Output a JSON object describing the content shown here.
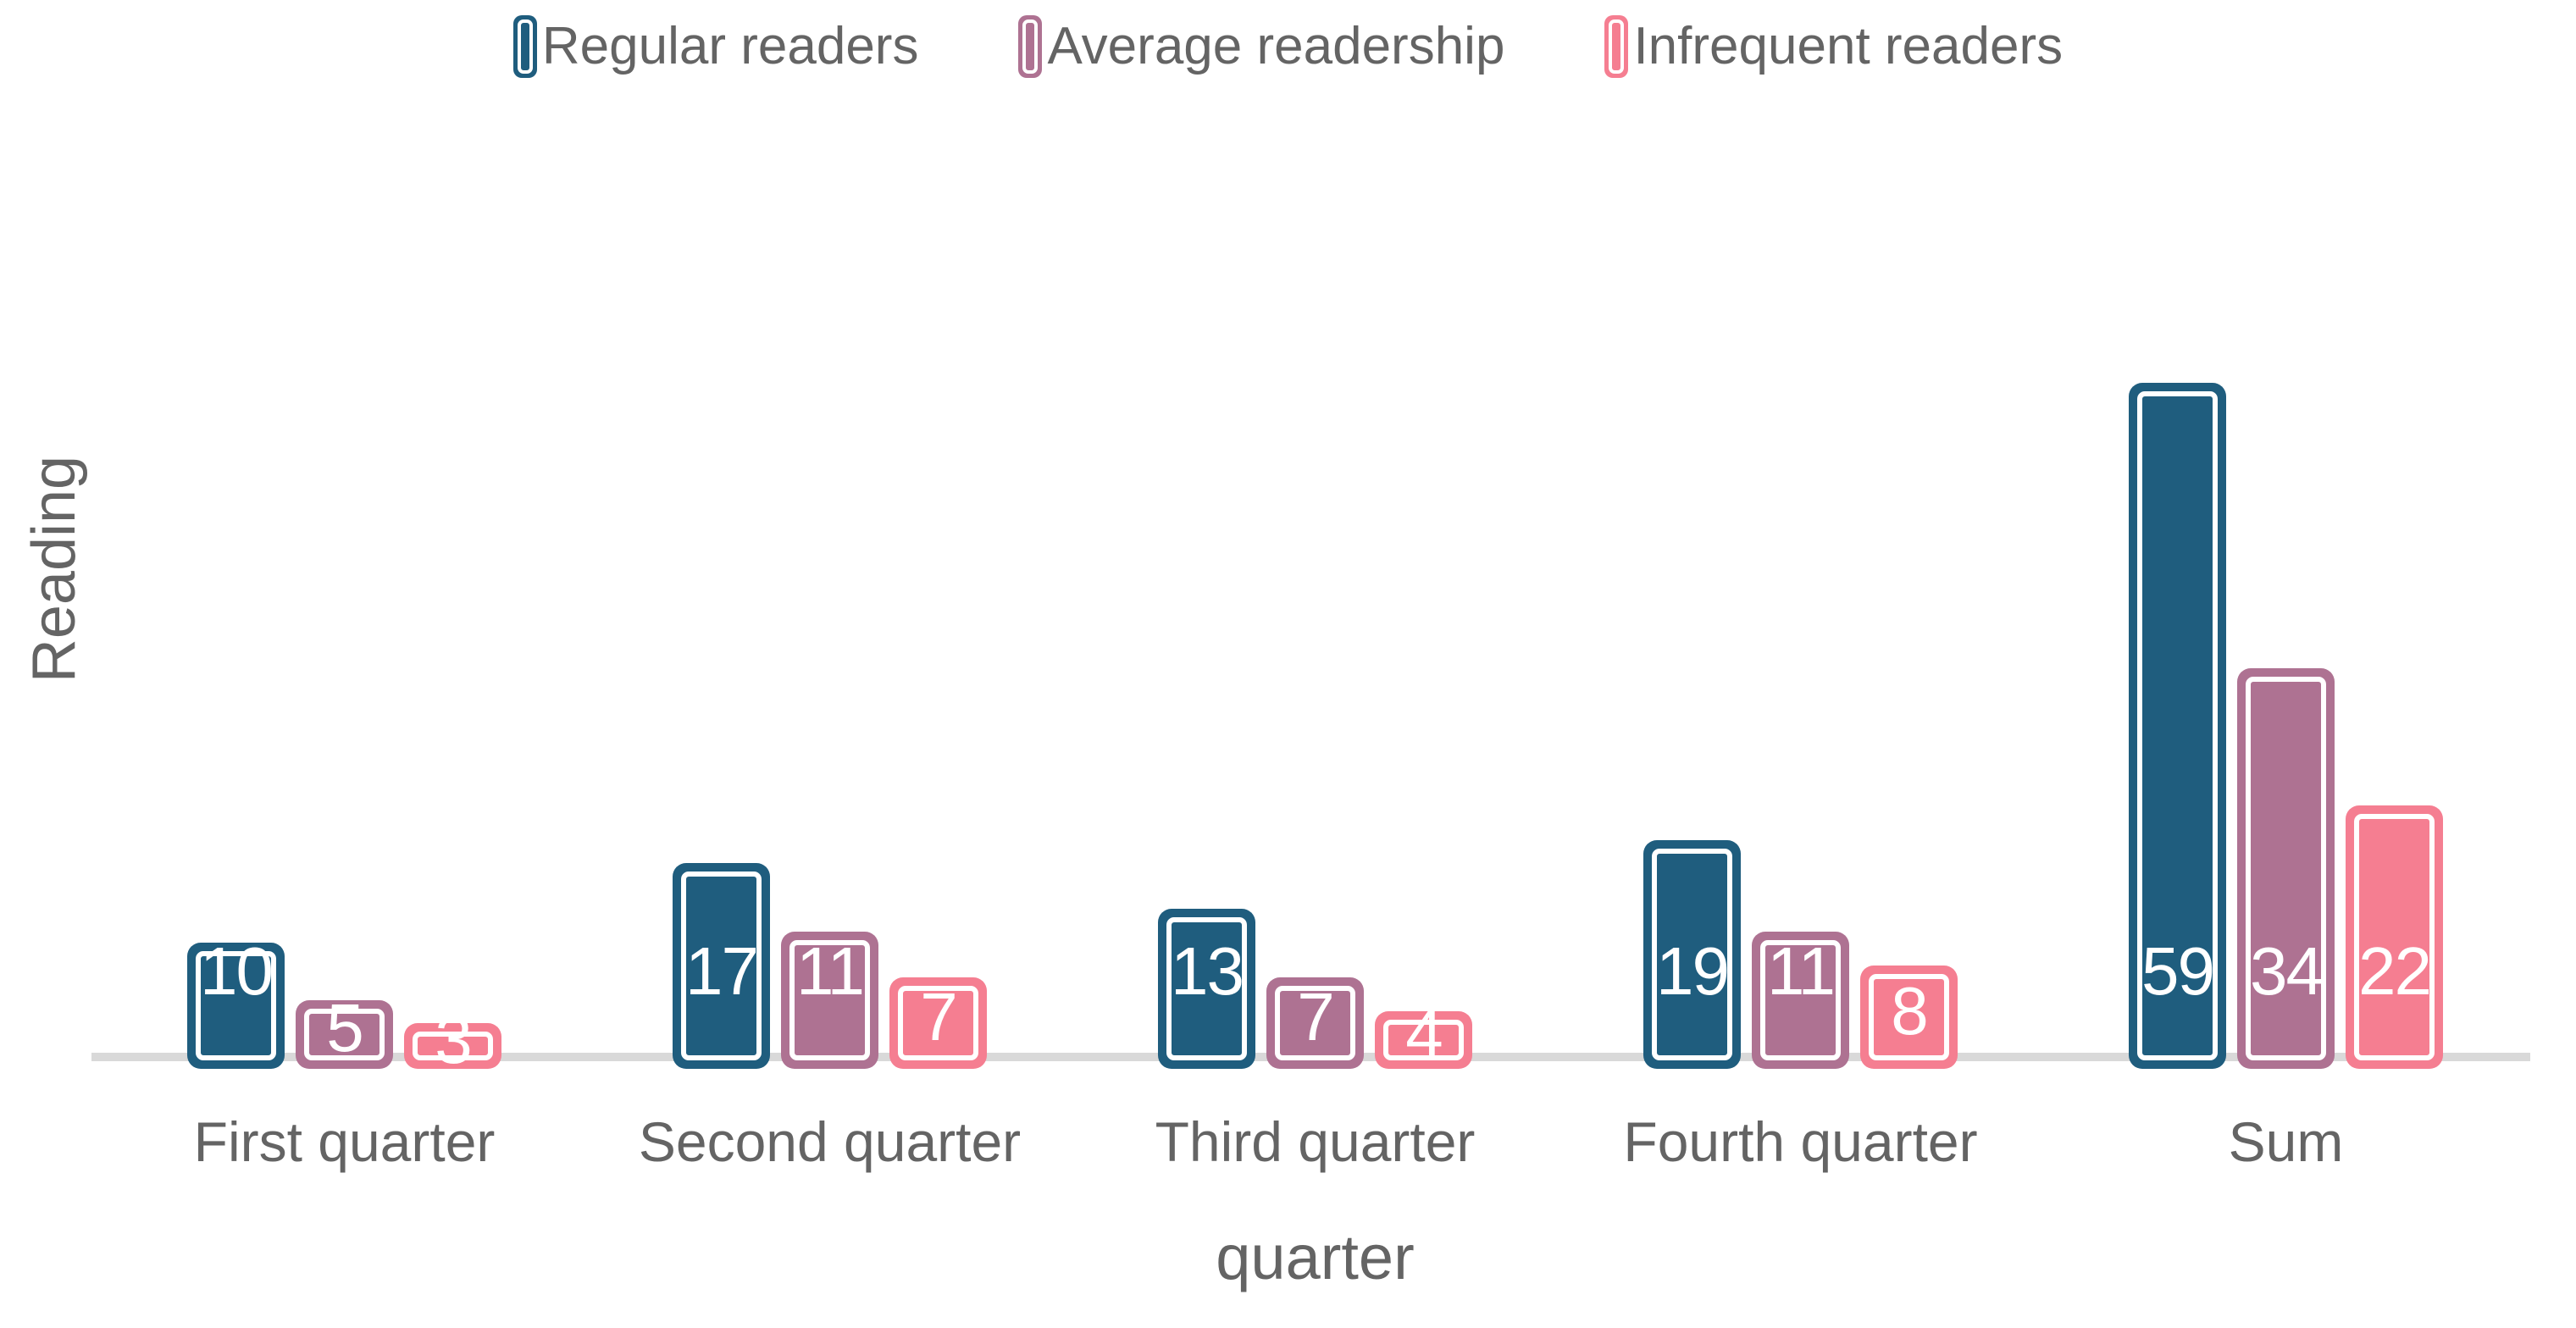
{
  "chart_data": {
    "type": "bar",
    "title": "",
    "xlabel": "quarter",
    "ylabel": "Reading",
    "categories": [
      "First quarter",
      "Second quarter",
      "Third quarter",
      "Fourth quarter",
      "Sum"
    ],
    "series": [
      {
        "name": "Regular readers",
        "color": "#1F5D7E",
        "values": [
          10,
          17,
          13,
          19,
          59
        ]
      },
      {
        "name": "Average readership",
        "color": "#AE7292",
        "values": [
          5,
          11,
          7,
          11,
          34
        ]
      },
      {
        "name": "Infrequent readers",
        "color": "#F57E91",
        "values": [
          3,
          7,
          4,
          8,
          22
        ]
      }
    ],
    "value_labels_shown": true,
    "legend_position": "top",
    "grid": "off",
    "ylim": [
      0,
      62
    ],
    "colors": {
      "axis_line": "#d9d9d9",
      "axis_text": "#646464",
      "value_label_text": "#ffffff"
    }
  }
}
